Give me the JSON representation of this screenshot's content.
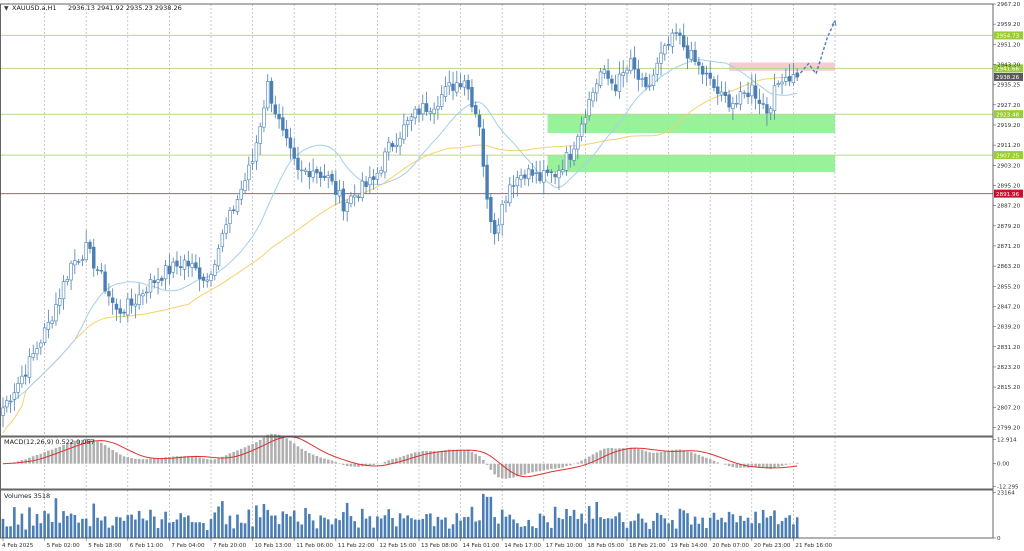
{
  "header": {
    "symbol": "XAUUSD.a,H1",
    "ohlc": "2936.13 2941.92 2935.23 2938.26"
  },
  "colors": {
    "bull": "#4a7eb5",
    "bear": "#4a7eb5",
    "ma_fast": "#a6cfe8",
    "ma_slow": "#f3d36a",
    "hline_green": "#b7d98b",
    "hline_red": "#d9466a",
    "zone_green": "#8ef08e",
    "zone_red": "#f6c4cf",
    "macd_hist": "#b0b0b0",
    "macd_signal": "#e03030",
    "volume": "#4a7eb5",
    "forecast": "#4a7eb5"
  },
  "chart_data": {
    "type": "candlestick",
    "main": {
      "ylim": [
        2795.8,
        2967.2
      ],
      "y_ticks": [
        "2967.20",
        "2959.20",
        "2951.20",
        "2943.20",
        "2935.25",
        "2927.20",
        "2919.20",
        "2911.20",
        "2903.20",
        "2895.20",
        "2887.20",
        "2879.20",
        "2871.20",
        "2863.20",
        "2855.20",
        "2847.20",
        "2839.20",
        "2831.20",
        "2823.20",
        "2815.20",
        "2807.20",
        "2799.20"
      ],
      "x_labels": [
        "4 Feb 2025",
        "5 Feb 02:00",
        "5 Feb 18:00",
        "6 Feb 11:00",
        "7 Feb 04:00",
        "7 Feb 20:00",
        "10 Feb 13:00",
        "11 Feb 06:00",
        "11 Feb 22:00",
        "12 Feb 15:00",
        "13 Feb 08:00",
        "14 Feb 01:00",
        "14 Feb 17:00",
        "17 Feb 10:00",
        "18 Feb 05:00",
        "18 Feb 21:00",
        "19 Feb 14:00",
        "20 Feb 07:00",
        "20 Feb 23:00",
        "21 Feb 16:00"
      ],
      "hlines": [
        {
          "value": 2954.73,
          "label": "2954.73",
          "kind": "green"
        },
        {
          "value": 2941.66,
          "label": "2941.66",
          "kind": "green"
        },
        {
          "value": 2923.48,
          "label": "2923.48",
          "kind": "green"
        },
        {
          "value": 2907.25,
          "label": "2907.25",
          "kind": "green"
        },
        {
          "value": 2891.96,
          "label": "2891.96",
          "kind": "red"
        }
      ],
      "price_label": "2938.26",
      "zones": [
        {
          "kind": "red",
          "from_index": 192,
          "to_index": 220,
          "y1": 2944.0,
          "y2": 2940.7
        },
        {
          "kind": "green",
          "from_index": 144,
          "to_index": 220,
          "y1": 2923.5,
          "y2": 2916.0
        },
        {
          "kind": "green",
          "from_index": 144,
          "to_index": 220,
          "y1": 2907.3,
          "y2": 2900.5
        }
      ],
      "anchors": [
        [
          0,
          2807
        ],
        [
          6,
          2822
        ],
        [
          12,
          2840
        ],
        [
          18,
          2864
        ],
        [
          22,
          2870
        ],
        [
          25,
          2862
        ],
        [
          30,
          2845
        ],
        [
          34,
          2848
        ],
        [
          38,
          2855
        ],
        [
          42,
          2860
        ],
        [
          48,
          2865
        ],
        [
          54,
          2858
        ],
        [
          58,
          2875
        ],
        [
          62,
          2890
        ],
        [
          66,
          2905
        ],
        [
          70,
          2935
        ],
        [
          74,
          2915
        ],
        [
          78,
          2900
        ],
        [
          82,
          2902
        ],
        [
          86,
          2898
        ],
        [
          90,
          2888
        ],
        [
          94,
          2893
        ],
        [
          98,
          2897
        ],
        [
          102,
          2910
        ],
        [
          106,
          2918
        ],
        [
          110,
          2925
        ],
        [
          114,
          2928
        ],
        [
          118,
          2934
        ],
        [
          122,
          2938
        ],
        [
          126,
          2920
        ],
        [
          128,
          2888
        ],
        [
          130,
          2878
        ],
        [
          134,
          2896
        ],
        [
          138,
          2901
        ],
        [
          142,
          2898
        ],
        [
          146,
          2900
        ],
        [
          150,
          2908
        ],
        [
          154,
          2925
        ],
        [
          158,
          2940
        ],
        [
          162,
          2935
        ],
        [
          166,
          2943
        ],
        [
          170,
          2932
        ],
        [
          174,
          2946
        ],
        [
          178,
          2955
        ],
        [
          182,
          2946
        ],
        [
          186,
          2938
        ],
        [
          190,
          2930
        ],
        [
          194,
          2928
        ],
        [
          198,
          2934
        ],
        [
          202,
          2925
        ],
        [
          206,
          2939
        ],
        [
          210,
          2938
        ]
      ],
      "forecast": [
        [
          210,
          2938.3
        ],
        [
          213,
          2943.5
        ],
        [
          215,
          2939.5
        ],
        [
          218,
          2954.0
        ],
        [
          220,
          2960.5
        ]
      ]
    },
    "macd": {
      "title": "MACD(12,26,9) 0.522 0.057",
      "ylim": [
        -13.5,
        14.2
      ],
      "y_ticks": [
        "12.914",
        "0.00",
        "-12.295"
      ]
    },
    "volume": {
      "title": "Volumes 3518",
      "ylim": [
        0,
        24500
      ],
      "y_ticks": [
        "23164",
        "0"
      ]
    }
  }
}
